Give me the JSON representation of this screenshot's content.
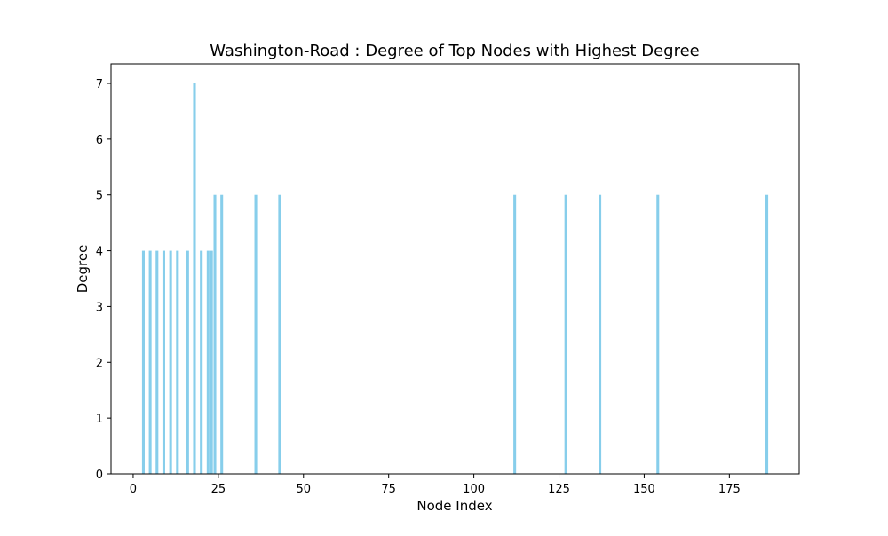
{
  "chart_data": {
    "type": "bar",
    "title": "Washington-Road : Degree of Top Nodes with Highest Degree",
    "xlabel": "Node Index",
    "ylabel": "Degree",
    "xlim": [
      -6.5,
      195.5
    ],
    "ylim": [
      0,
      7.35
    ],
    "xticks": [
      0,
      25,
      50,
      75,
      100,
      125,
      150,
      175
    ],
    "yticks": [
      0,
      1,
      2,
      3,
      4,
      5,
      6,
      7
    ],
    "grid": false,
    "bar_color": "#87CEEB",
    "bar_width": 0.8,
    "x": [
      3,
      5,
      7,
      9,
      11,
      13,
      16,
      18,
      20,
      22,
      23,
      24,
      26,
      36,
      43,
      112,
      127,
      137,
      154,
      186
    ],
    "values": [
      4,
      4,
      4,
      4,
      4,
      4,
      4,
      7,
      4,
      4,
      4,
      5,
      5,
      5,
      5,
      5,
      5,
      5,
      5,
      5
    ]
  }
}
